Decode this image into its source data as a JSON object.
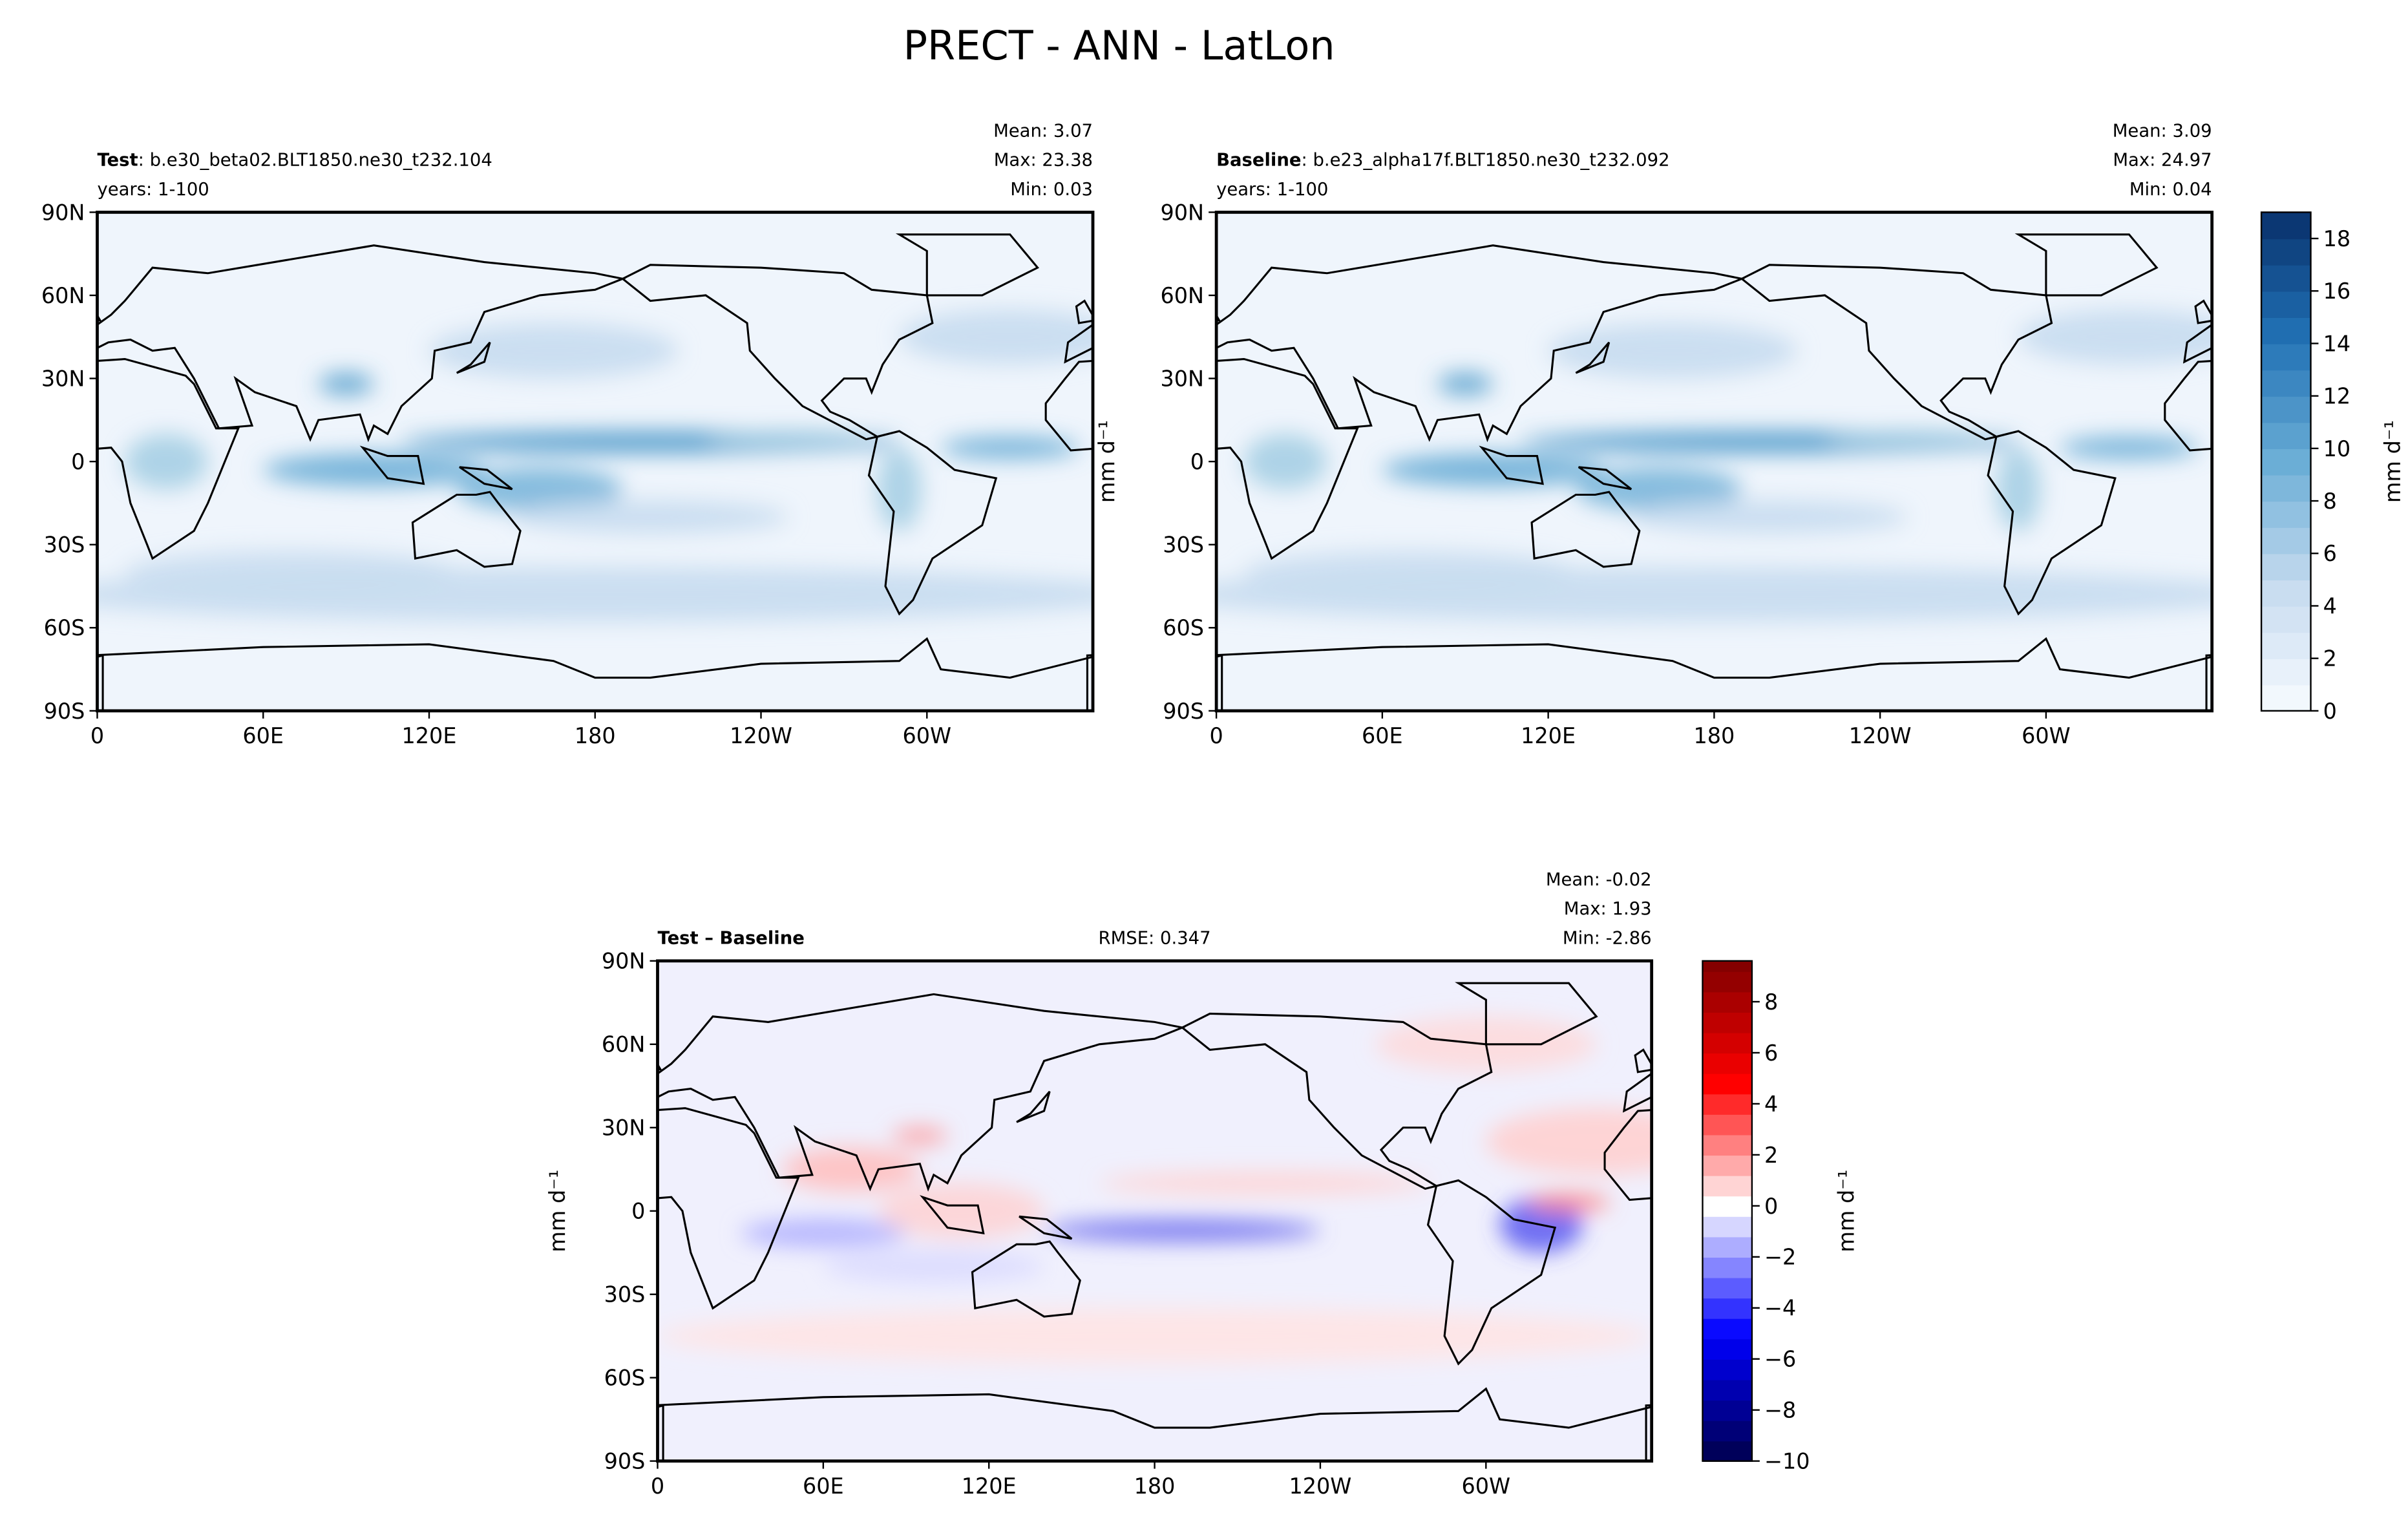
{
  "title": "PRECT - ANN - LatLon",
  "chart_data": [
    {
      "type": "heatmap",
      "panel": "test",
      "label_bold": "Test",
      "label_rest": ": b.e30_beta02.BLT1850.ne30_t232.104",
      "years": "years: 1-100",
      "stats": [
        "Mean:  3.07",
        "Max: 23.38",
        "Min:  0.03"
      ],
      "xticks": [
        "0",
        "60E",
        "120E",
        "180",
        "120W",
        "60W"
      ],
      "xtick_values": [
        0,
        60,
        120,
        180,
        240,
        300
      ],
      "xlim": [
        0,
        360
      ],
      "yticks": [
        "90N",
        "60N",
        "30N",
        "0",
        "30S",
        "60S",
        "90S"
      ],
      "ytick_values": [
        90,
        60,
        30,
        0,
        -30,
        -60,
        -90
      ],
      "ylim": [
        -90,
        90
      ],
      "colormap": "Blues"
    },
    {
      "type": "heatmap",
      "panel": "baseline",
      "label_bold": "Baseline",
      "label_rest": ": b.e23_alpha17f.BLT1850.ne30_t232.092",
      "years": "years: 1-100",
      "stats": [
        "Mean:  3.09",
        "Max: 24.97",
        "Min:  0.04"
      ],
      "xticks": [
        "0",
        "60E",
        "120E",
        "180",
        "120W",
        "60W"
      ],
      "xtick_values": [
        0,
        60,
        120,
        180,
        240,
        300
      ],
      "xlim": [
        0,
        360
      ],
      "yticks": [
        "90N",
        "60N",
        "30N",
        "0",
        "30S",
        "60S",
        "90S"
      ],
      "ytick_values": [
        90,
        60,
        30,
        0,
        -30,
        -60,
        -90
      ],
      "ylim": [
        -90,
        90
      ],
      "colormap": "Blues",
      "colorbar": {
        "label": "mm d⁻¹",
        "ticks": [
          "0",
          "2",
          "4",
          "6",
          "8",
          "10",
          "12",
          "14",
          "16",
          "18"
        ],
        "tick_values": [
          0,
          2,
          4,
          6,
          8,
          10,
          12,
          14,
          16,
          18
        ],
        "range": [
          0,
          19
        ]
      },
      "side_label": "mm d⁻¹"
    },
    {
      "type": "heatmap",
      "panel": "difference",
      "label_bold": "Test – Baseline",
      "rmse": "RMSE: 0.347",
      "stats": [
        "Mean: -0.02",
        "Max:  1.93",
        "Min: -2.86"
      ],
      "xticks": [
        "0",
        "60E",
        "120E",
        "180",
        "120W",
        "60W"
      ],
      "xtick_values": [
        0,
        60,
        120,
        180,
        240,
        300
      ],
      "xlim": [
        0,
        360
      ],
      "yticks": [
        "90N",
        "60N",
        "30N",
        "0",
        "30S",
        "60S",
        "90S"
      ],
      "ytick_values": [
        90,
        60,
        30,
        0,
        -30,
        -60,
        -90
      ],
      "ylim": [
        -90,
        90
      ],
      "colormap": "bwr",
      "colorbar": {
        "label": "mm d⁻¹",
        "ticks": [
          "−10",
          "−8",
          "−6",
          "−4",
          "−2",
          "0",
          "2",
          "4",
          "6",
          "8"
        ],
        "tick_values": [
          -10,
          -8,
          -6,
          -4,
          -2,
          0,
          2,
          4,
          6,
          8
        ],
        "range": [
          -10,
          9.6
        ]
      },
      "side_label": "mm d⁻¹"
    }
  ]
}
